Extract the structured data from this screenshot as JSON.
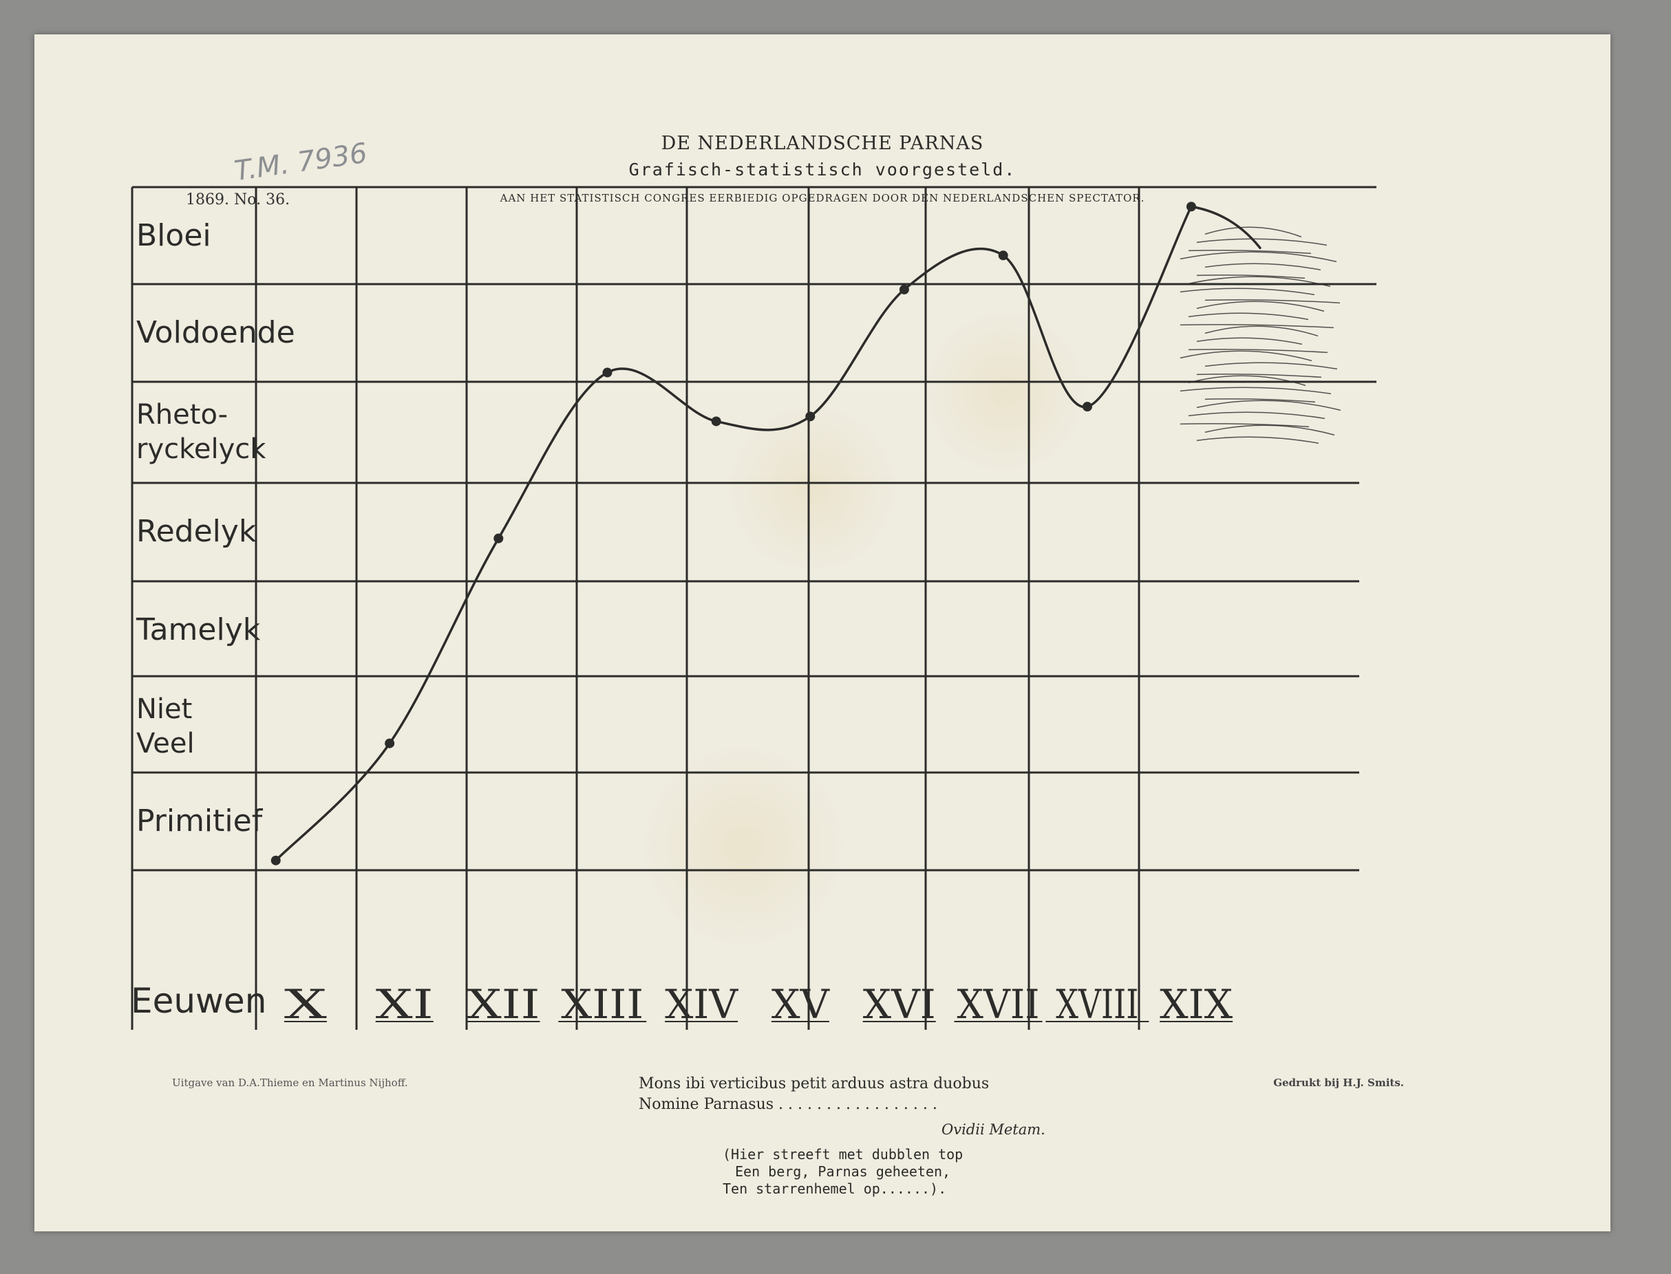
{
  "header": {
    "title": "DE NEDERLANDSCHE PARNAS",
    "subtitle": "Grafisch-statistisch voorgesteld.",
    "dedication": "AAN HET STATISTISCH CONGRES EERBIEDIG OPGEDRAGEN DOOR DEN NEDERLANDSCHEN SPECTATOR.",
    "issue": "1869. No. 36.",
    "inventory_mark": "T.M. 7936"
  },
  "footer": {
    "publisher": "Uitgave van D.A.Thieme en Martinus Nijhoff.",
    "printer": "Gedrukt bij H.J. Smits.",
    "verse": [
      "Mons ibi verticibus petit arduus astra duobus",
      "Nomine Parnasus . . . . . . . . . . . . . . . . ."
    ],
    "attribution": "Ovidii Metam.",
    "translation": [
      "(Hier streeft met dubblen top",
      "Een berg, Parnas geheeten,",
      "Ten starrenhemel op......)."
    ]
  },
  "colors": {
    "paper": "#efece0",
    "ink": "#2c2c2a",
    "background": "#8e8e8c"
  },
  "chart_data": {
    "type": "line",
    "title": "DE NEDERLANDSCHE PARNAS",
    "xlabel": "Eeuwen",
    "categories": [
      "X",
      "XI",
      "XII",
      "XIII",
      "XIV",
      "XV",
      "XVI",
      "XVII",
      "XVIII",
      "XIX"
    ],
    "ylevels": [
      "Primitief",
      "Niet Veel",
      "Tamelyk",
      "Redelyk",
      "Rheto-ryckelyck",
      "Voldoende",
      "Bloei"
    ],
    "ylevel_display": [
      "Primitief",
      "Niet\nVeel",
      "Tamelyk",
      "Redelyk",
      "Rheto-\nryckelyck",
      "Voldoende",
      "Bloei"
    ],
    "ylim": [
      0,
      7
    ],
    "points": [
      {
        "x": 0.2,
        "y": 0.1
      },
      {
        "x": 1.35,
        "y": 1.3
      },
      {
        "x": 2.45,
        "y": 3.4
      },
      {
        "x": 3.55,
        "y": 5.1
      },
      {
        "x": 4.65,
        "y": 4.6
      },
      {
        "x": 5.6,
        "y": 4.65
      },
      {
        "x": 6.55,
        "y": 5.95
      },
      {
        "x": 7.55,
        "y": 6.3
      },
      {
        "x": 8.4,
        "y": 4.75
      },
      {
        "x": 9.45,
        "y": 6.8
      }
    ],
    "grid": true,
    "legend": "none"
  }
}
